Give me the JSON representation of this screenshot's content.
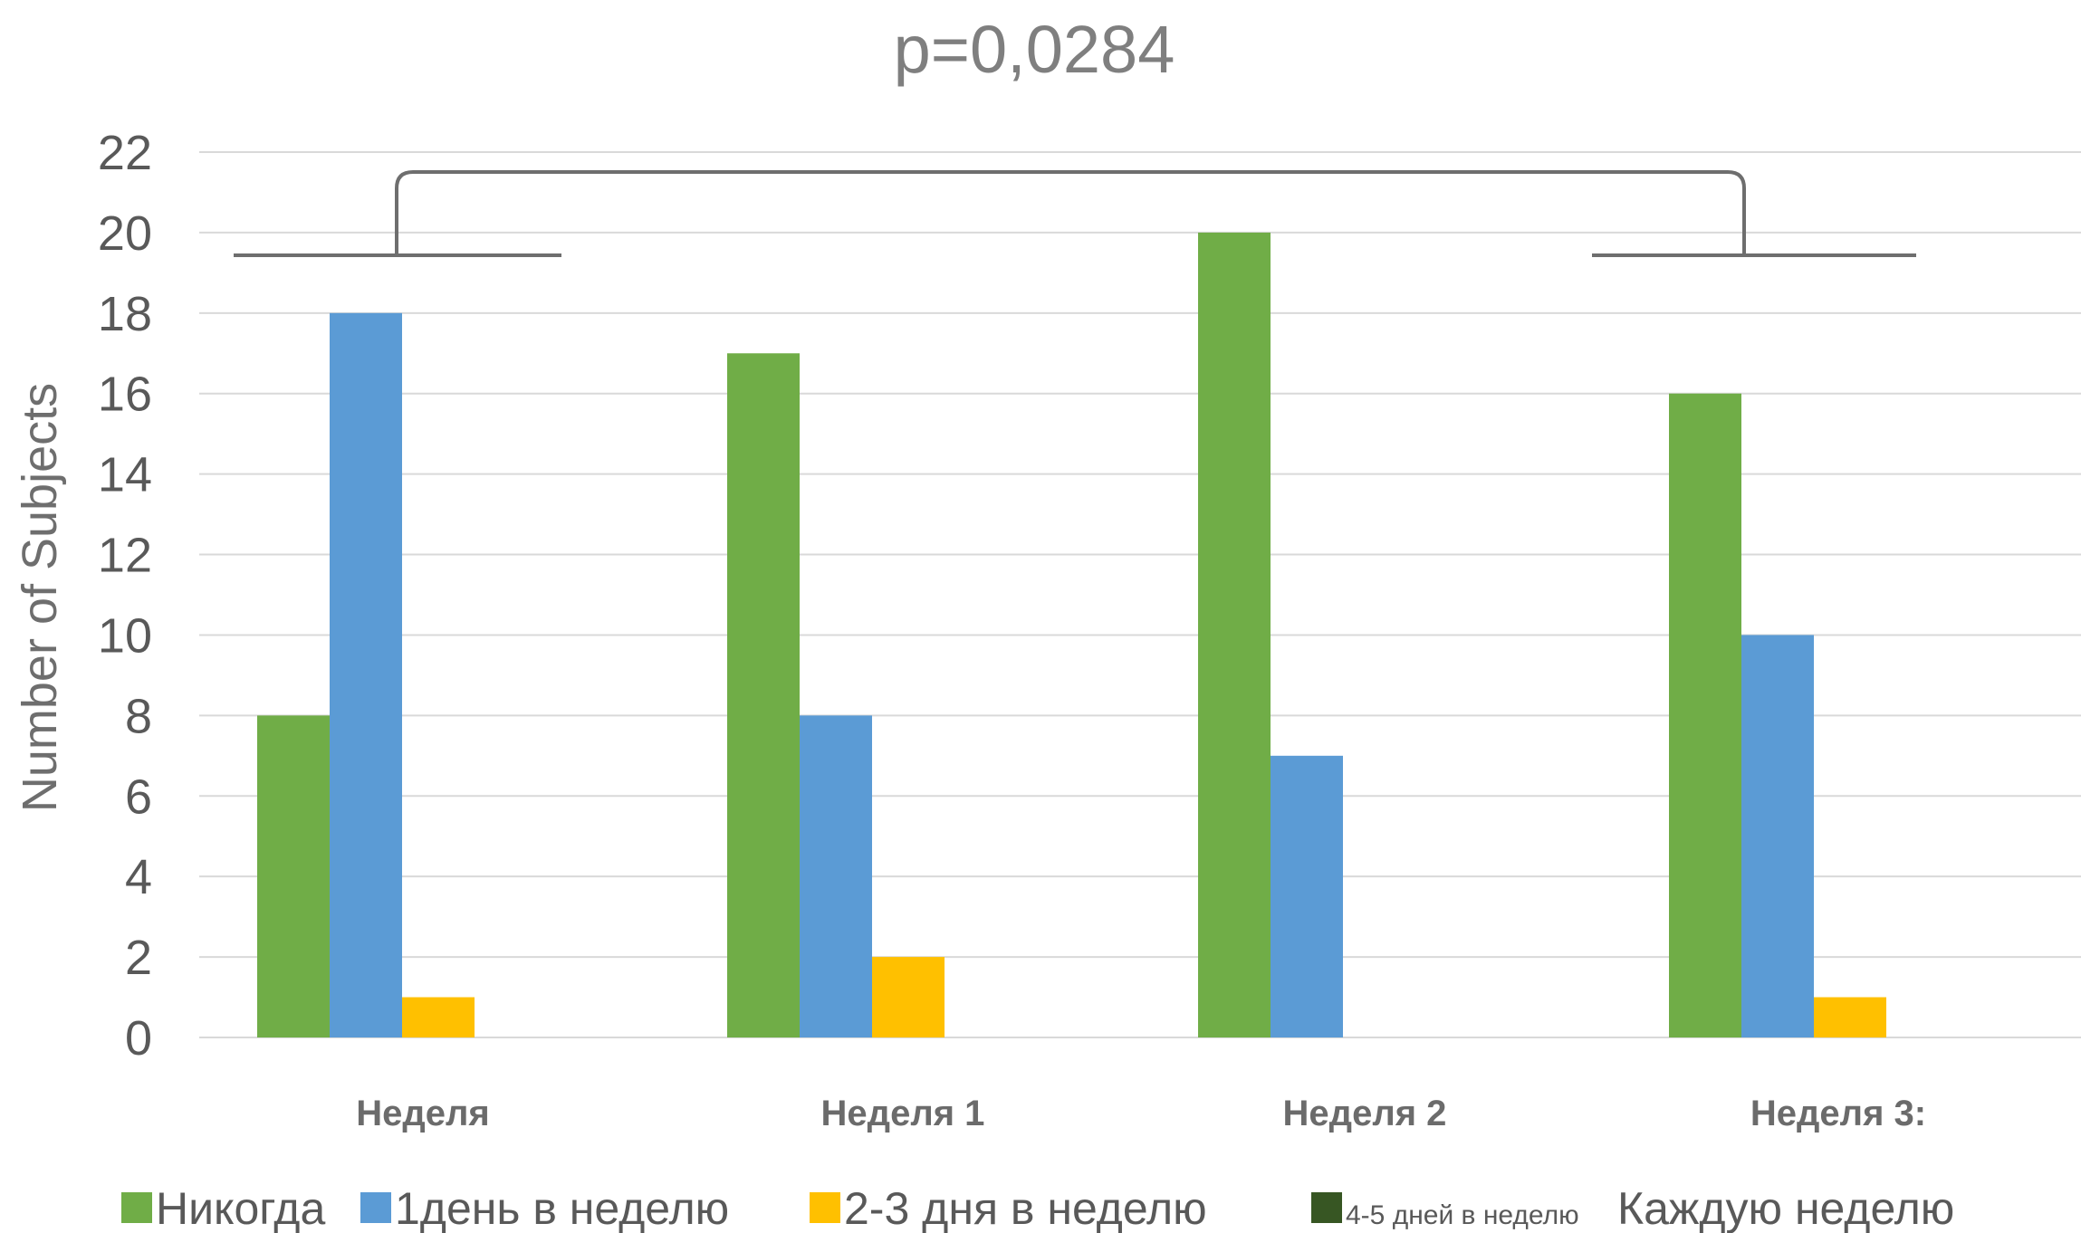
{
  "chart_data": {
    "type": "bar",
    "title": "p=0,0284",
    "ylabel": "Number of Subjects",
    "xlabel": "",
    "ylim": [
      0,
      22
    ],
    "yticks": [
      0,
      2,
      4,
      6,
      8,
      10,
      12,
      14,
      16,
      18,
      20,
      22
    ],
    "grid": true,
    "legend_position": "bottom",
    "categories": [
      "Неделя",
      "Неделя 1",
      "Неделя 2",
      "Неделя 3:"
    ],
    "series": [
      {
        "name": "Никогда",
        "color": "#70ad47",
        "values": [
          8,
          17,
          20,
          16
        ]
      },
      {
        "name": "1день в неделю",
        "color": "#5b9bd5",
        "values": [
          18,
          8,
          7,
          10
        ]
      },
      {
        "name": "2-3 дня в неделю",
        "color": "#ffc000",
        "values": [
          1,
          2,
          0,
          1
        ]
      },
      {
        "name": "4-5 дней в неделю",
        "color": "#375623",
        "values": [
          0,
          0,
          0,
          0
        ]
      },
      {
        "name": "Каждую неделю",
        "color": "#ffffff",
        "values": [
          0,
          0,
          0,
          0
        ]
      }
    ],
    "annotations": [
      {
        "type": "significance-bracket",
        "from_category": "Неделя",
        "to_category": "Неделя 3:",
        "label": "p=0,0284"
      }
    ]
  }
}
